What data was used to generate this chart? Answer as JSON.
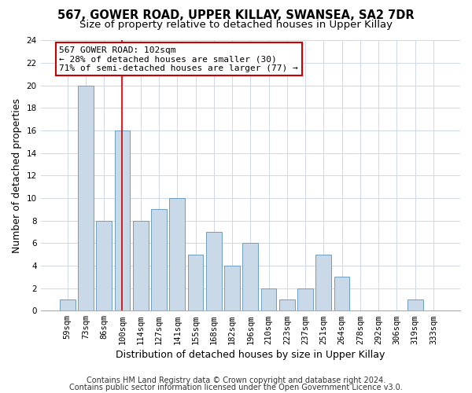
{
  "title1": "567, GOWER ROAD, UPPER KILLAY, SWANSEA, SA2 7DR",
  "title2": "Size of property relative to detached houses in Upper Killay",
  "xlabel": "Distribution of detached houses by size in Upper Killay",
  "ylabel": "Number of detached properties",
  "categories": [
    "59sqm",
    "73sqm",
    "86sqm",
    "100sqm",
    "114sqm",
    "127sqm",
    "141sqm",
    "155sqm",
    "168sqm",
    "182sqm",
    "196sqm",
    "210sqm",
    "223sqm",
    "237sqm",
    "251sqm",
    "264sqm",
    "278sqm",
    "292sqm",
    "306sqm",
    "319sqm",
    "333sqm"
  ],
  "values": [
    1,
    20,
    8,
    16,
    8,
    9,
    10,
    5,
    7,
    4,
    6,
    2,
    1,
    2,
    5,
    3,
    0,
    0,
    0,
    1,
    0
  ],
  "bar_color": "#c9d9e8",
  "bar_edge_color": "#6e9fc0",
  "bar_width": 0.85,
  "vline_x": 2.97,
  "vline_color": "#cc0000",
  "annotation_text": "567 GOWER ROAD: 102sqm\n← 28% of detached houses are smaller (30)\n71% of semi-detached houses are larger (77) →",
  "annotation_box_color": "#ffffff",
  "annotation_box_edge": "#cc0000",
  "ylim": [
    0,
    24
  ],
  "yticks": [
    0,
    2,
    4,
    6,
    8,
    10,
    12,
    14,
    16,
    18,
    20,
    22,
    24
  ],
  "footer1": "Contains HM Land Registry data © Crown copyright and database right 2024.",
  "footer2": "Contains public sector information licensed under the Open Government Licence v3.0.",
  "bg_color": "#ffffff",
  "grid_color": "#d0d8e8",
  "title1_fontsize": 10.5,
  "title2_fontsize": 9.5,
  "tick_fontsize": 7.5,
  "label_fontsize": 9,
  "footer_fontsize": 7,
  "annot_fontsize": 8
}
